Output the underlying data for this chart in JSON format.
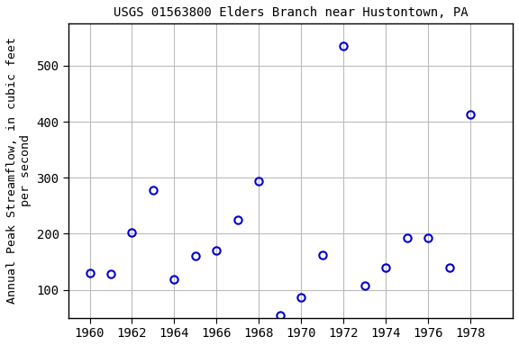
{
  "title": "USGS 01563800 Elders Branch near Hustontown, PA",
  "ylabel_line1": "Annual Peak Streamflow, in cubic feet",
  "ylabel_line2": "per second",
  "years": [
    1960,
    1961,
    1962,
    1963,
    1964,
    1965,
    1966,
    1967,
    1968,
    1969,
    1970,
    1971,
    1972,
    1973,
    1974,
    1975,
    1976,
    1977,
    1978
  ],
  "flows": [
    130,
    128,
    202,
    278,
    118,
    160,
    170,
    224,
    294,
    55,
    86,
    162,
    535,
    108,
    140,
    192,
    192,
    140,
    413
  ],
  "marker_color": "#0000cc",
  "marker_facecolor": "none",
  "marker_style": "o",
  "marker_size": 6,
  "marker_linewidth": 1.5,
  "xlim": [
    1959,
    1980
  ],
  "ylim": [
    50,
    575
  ],
  "xticks": [
    1960,
    1962,
    1964,
    1966,
    1968,
    1970,
    1972,
    1974,
    1976,
    1978
  ],
  "yticks": [
    100,
    200,
    300,
    400,
    500
  ],
  "grid_color": "#bbbbbb",
  "background_color": "white",
  "title_fontsize": 10,
  "label_fontsize": 9.5,
  "tick_fontsize": 10
}
